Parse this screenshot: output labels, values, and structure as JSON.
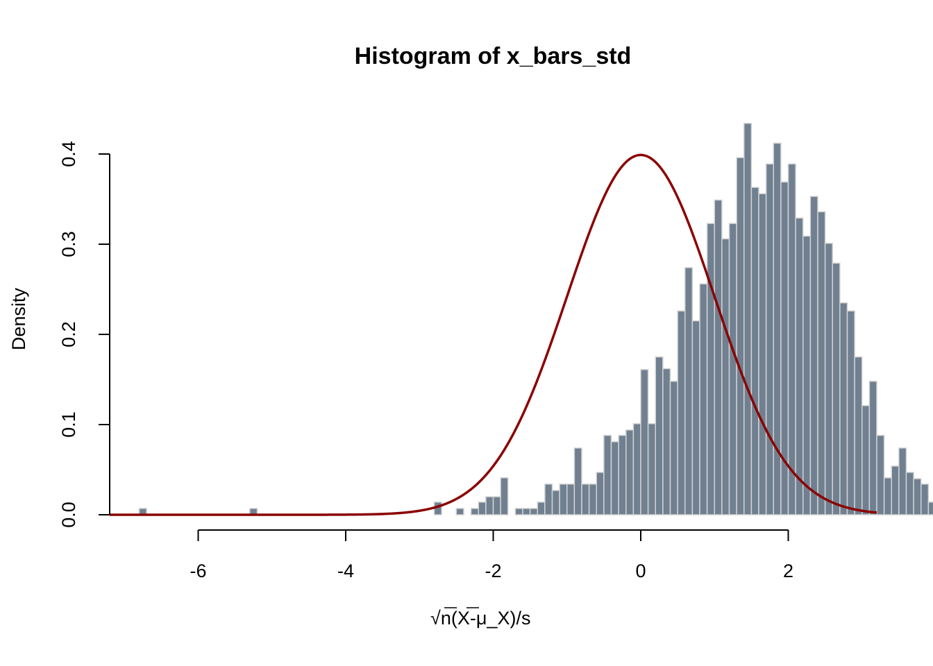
{
  "chart_data": {
    "type": "histogram",
    "title": "Histogram of x_bars_std",
    "xlabel_parts": {
      "sqrt": "√",
      "n": "n",
      "open": "(",
      "xbar": "X",
      "rest": "-μ_X)/s"
    },
    "xlabel": "√n(X̄-μ_X)/s",
    "ylabel": "Density",
    "xlim": [
      -7.2,
      3.2
    ],
    "ylim": [
      0,
      0.4
    ],
    "xticks": [
      -6,
      -4,
      -2,
      0,
      2
    ],
    "xtick_labels": [
      "-6",
      "-4",
      "-2",
      "0",
      "2"
    ],
    "yticks": [
      0.0,
      0.1,
      0.2,
      0.3,
      0.4
    ],
    "ytick_labels": [
      "0.0",
      "0.1",
      "0.2",
      "0.3",
      "0.4"
    ],
    "bin_width": 0.1,
    "bins_start": -6.8,
    "densities": [
      0.007,
      0,
      0,
      0,
      0,
      0,
      0,
      0,
      0,
      0,
      0,
      0,
      0,
      0,
      0,
      0.007,
      0,
      0,
      0,
      0,
      0,
      0,
      0,
      0,
      0,
      0,
      0,
      0,
      0,
      0,
      0,
      0,
      0,
      0,
      0,
      0,
      0,
      0,
      0,
      0,
      0.014,
      0,
      0,
      0.007,
      0,
      0.007,
      0.014,
      0.02,
      0.02,
      0.041,
      0,
      0.007,
      0.007,
      0.007,
      0.014,
      0.034,
      0.027,
      0.034,
      0.034,
      0.074,
      0.034,
      0.034,
      0.047,
      0.088,
      0.081,
      0.088,
      0.094,
      0.101,
      0.161,
      0.101,
      0.175,
      0.162,
      0.148,
      0.226,
      0.274,
      0.215,
      0.256,
      0.323,
      0.349,
      0.306,
      0.323,
      0.396,
      0.434,
      0.363,
      0.356,
      0.389,
      0.412,
      0.369,
      0.389,
      0.329,
      0.309,
      0.353,
      0.336,
      0.301,
      0.279,
      0.235,
      0.226,
      0.175,
      0.121,
      0.148,
      0.088,
      0.041,
      0.054,
      0.074,
      0.047,
      0.04,
      0.034,
      0.014,
      0.014,
      0.007,
      0.007,
      0,
      0.007
    ],
    "curve": {
      "type": "normal-density",
      "mean": 0,
      "sd": 1,
      "color": "#8B0000"
    },
    "bar_color": "#708090",
    "bar_border": "#D3D3D3"
  }
}
